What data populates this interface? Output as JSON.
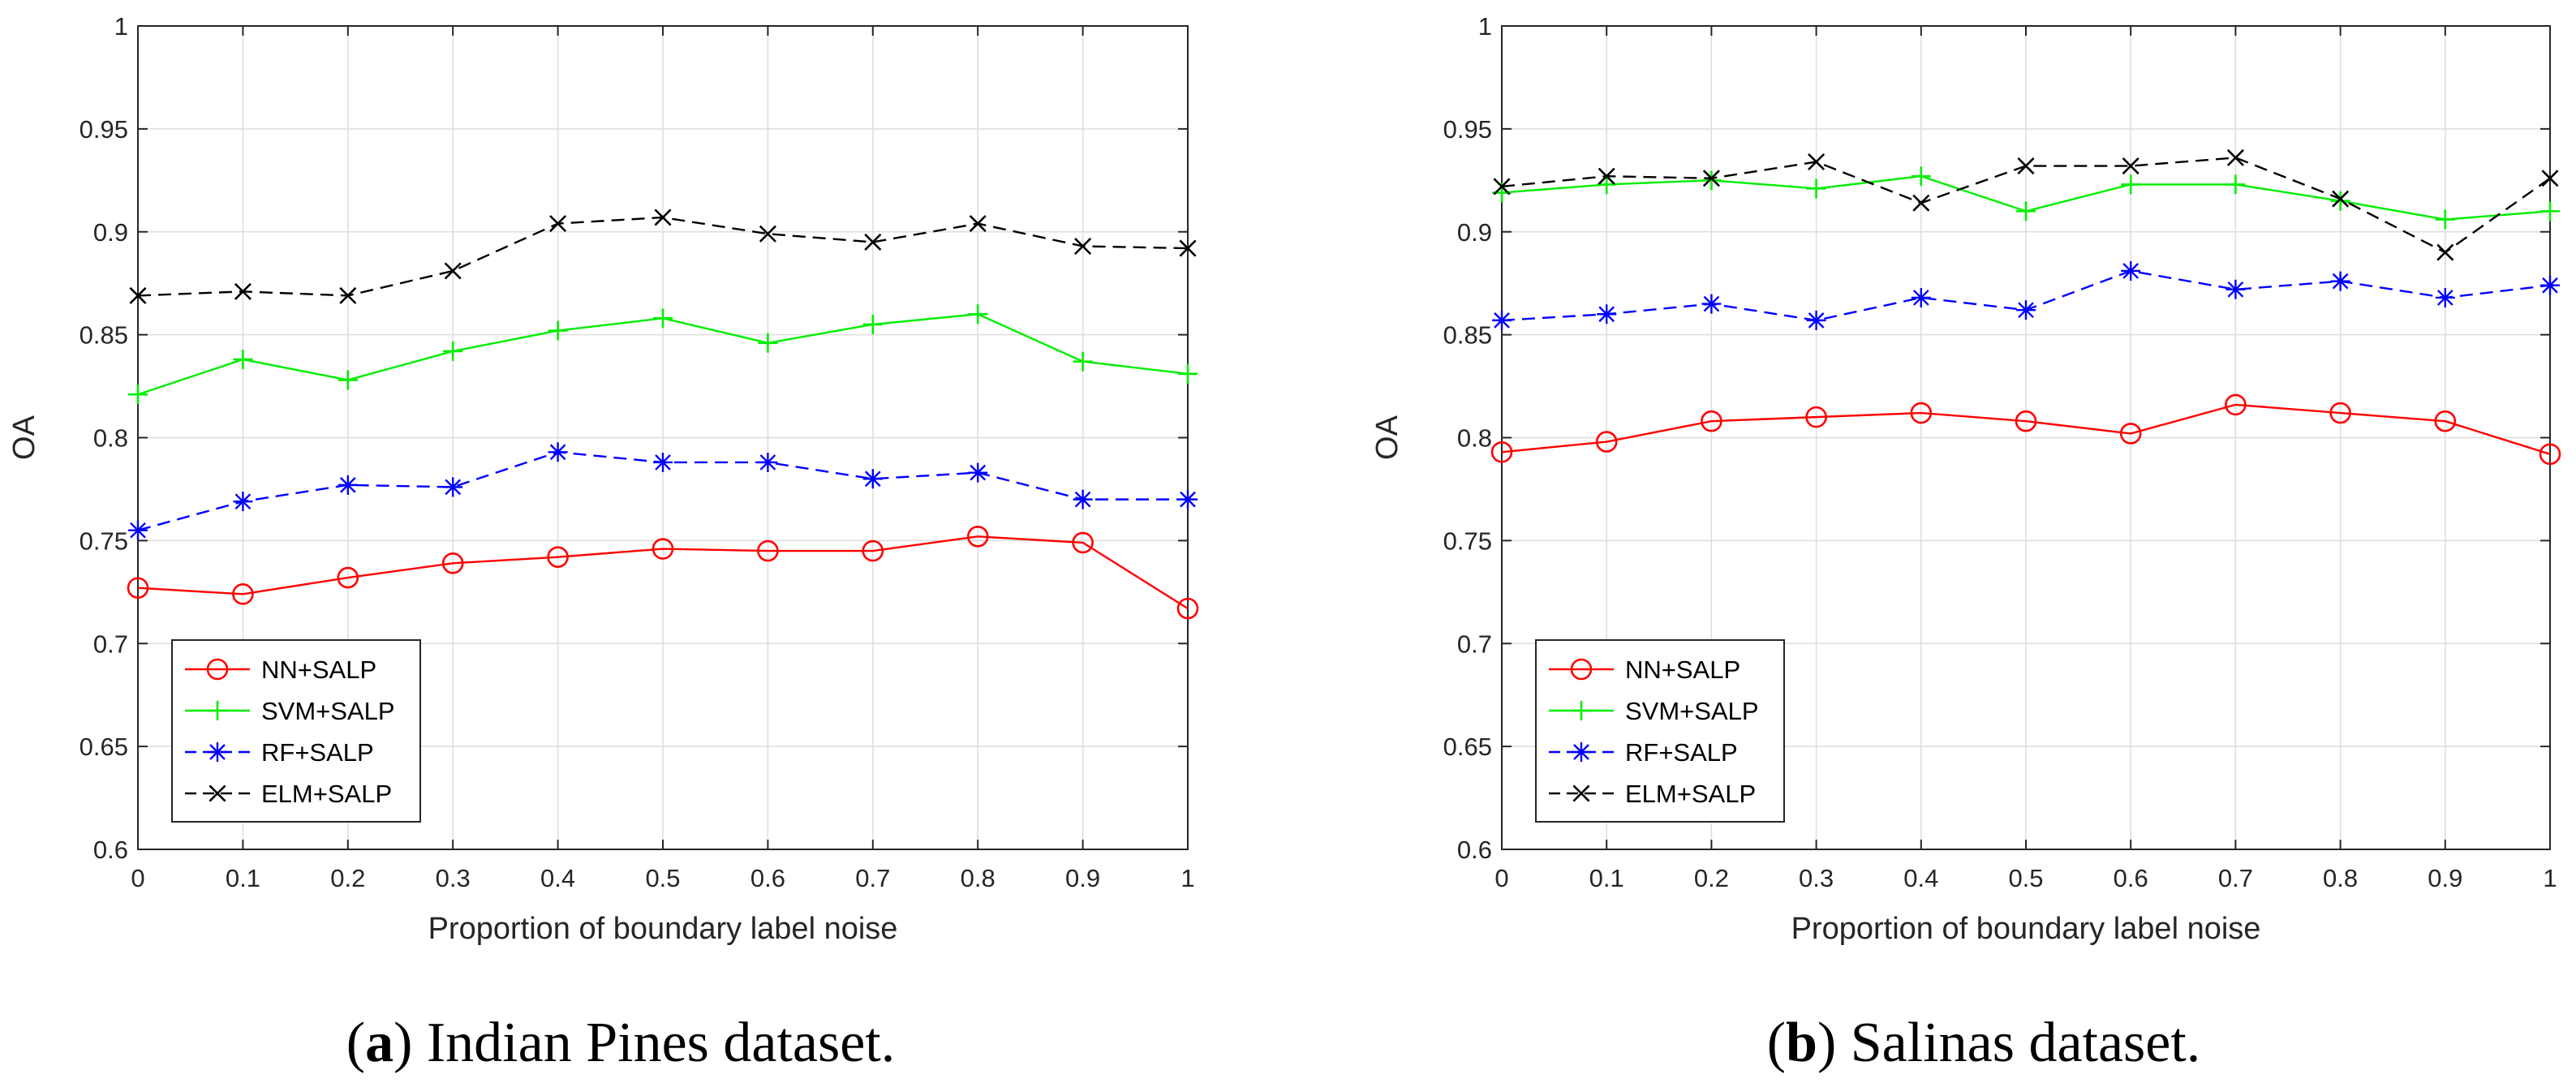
{
  "colors": {
    "nn": "#ff0000",
    "svm": "#00ee00",
    "rf": "#0000ff",
    "elm": "#000000",
    "grid": "#dddddd",
    "axis": "#262626"
  },
  "chart_data": [
    {
      "type": "line",
      "title": "",
      "xlabel": "Proportion of boundary label noise",
      "ylabel": "OA",
      "xlim": [
        0,
        1
      ],
      "ylim": [
        0.6,
        1
      ],
      "grid": true,
      "legend_position": "bottom-left",
      "x": [
        0,
        0.1,
        0.2,
        0.3,
        0.4,
        0.5,
        0.6,
        0.7,
        0.8,
        0.9,
        1
      ],
      "xticks": [
        "0",
        "0.1",
        "0.2",
        "0.3",
        "0.4",
        "0.5",
        "0.6",
        "0.7",
        "0.8",
        "0.9",
        "1"
      ],
      "yticks": [
        "0.6",
        "0.65",
        "0.7",
        "0.75",
        "0.8",
        "0.85",
        "0.9",
        "0.95",
        "1"
      ],
      "series": [
        {
          "name": "NN+SALP",
          "color": "#ff0000",
          "marker": "circle",
          "dash": "solid",
          "values": [
            0.727,
            0.724,
            0.732,
            0.739,
            0.742,
            0.746,
            0.745,
            0.745,
            0.752,
            0.749,
            0.717
          ]
        },
        {
          "name": "SVM+SALP",
          "color": "#00ee00",
          "marker": "plus",
          "dash": "solid",
          "values": [
            0.821,
            0.838,
            0.828,
            0.842,
            0.852,
            0.858,
            0.846,
            0.855,
            0.86,
            0.837,
            0.831
          ]
        },
        {
          "name": "RF+SALP",
          "color": "#0000ff",
          "marker": "asterisk",
          "dash": "dashed",
          "values": [
            0.755,
            0.769,
            0.777,
            0.776,
            0.793,
            0.788,
            0.788,
            0.78,
            0.783,
            0.77,
            0.77
          ]
        },
        {
          "name": "ELM+SALP",
          "color": "#000000",
          "marker": "x",
          "dash": "dashed",
          "values": [
            0.869,
            0.871,
            0.869,
            0.881,
            0.904,
            0.907,
            0.899,
            0.895,
            0.904,
            0.893,
            0.892
          ]
        }
      ],
      "caption": {
        "letter": "a",
        "text": " Indian Pines dataset."
      }
    },
    {
      "type": "line",
      "title": "",
      "xlabel": "Proportion of boundary label noise",
      "ylabel": "OA",
      "xlim": [
        0,
        1
      ],
      "ylim": [
        0.6,
        1
      ],
      "grid": true,
      "legend_position": "bottom-left",
      "x": [
        0,
        0.1,
        0.2,
        0.3,
        0.4,
        0.5,
        0.6,
        0.7,
        0.8,
        0.9,
        1
      ],
      "xticks": [
        "0",
        "0.1",
        "0.2",
        "0.3",
        "0.4",
        "0.5",
        "0.6",
        "0.7",
        "0.8",
        "0.9",
        "1"
      ],
      "yticks": [
        "0.6",
        "0.65",
        "0.7",
        "0.75",
        "0.8",
        "0.85",
        "0.9",
        "0.95",
        "1"
      ],
      "series": [
        {
          "name": "NN+SALP",
          "color": "#ff0000",
          "marker": "circle",
          "dash": "solid",
          "values": [
            0.793,
            0.798,
            0.808,
            0.81,
            0.812,
            0.808,
            0.802,
            0.816,
            0.812,
            0.808,
            0.792
          ]
        },
        {
          "name": "SVM+SALP",
          "color": "#00ee00",
          "marker": "plus",
          "dash": "solid",
          "values": [
            0.919,
            0.923,
            0.925,
            0.921,
            0.927,
            0.91,
            0.923,
            0.923,
            0.915,
            0.906,
            0.91
          ]
        },
        {
          "name": "RF+SALP",
          "color": "#0000ff",
          "marker": "asterisk",
          "dash": "dashed",
          "values": [
            0.857,
            0.86,
            0.865,
            0.857,
            0.868,
            0.862,
            0.881,
            0.872,
            0.876,
            0.868,
            0.874
          ]
        },
        {
          "name": "ELM+SALP",
          "color": "#000000",
          "marker": "x",
          "dash": "dashed",
          "values": [
            0.922,
            0.927,
            0.926,
            0.934,
            0.914,
            0.932,
            0.932,
            0.936,
            0.916,
            0.89,
            0.926
          ]
        }
      ],
      "caption": {
        "letter": "b",
        "text": " Salinas dataset."
      }
    }
  ]
}
